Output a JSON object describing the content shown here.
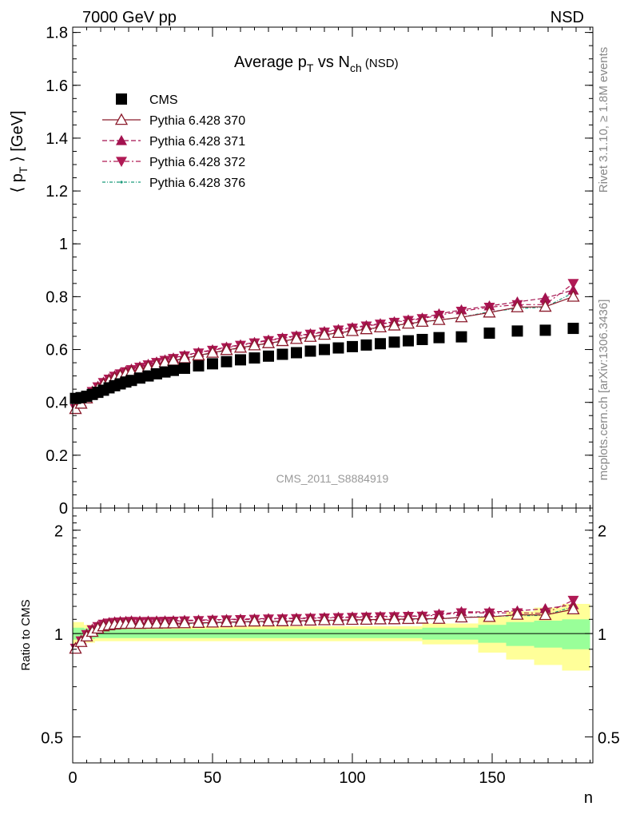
{
  "header": {
    "left": "7000 GeV pp",
    "right": "NSD"
  },
  "side_labels": {
    "rivet": "Rivet 3.1.10, ≥ 1.8M events",
    "mcplots": "mcplots.cern.ch [arXiv:1306.3436]"
  },
  "watermark": "CMS_2011_S8884919",
  "colors": {
    "cms": "#000000",
    "p370": "#8b1a2b",
    "p371": "#a3124f",
    "p372": "#b01a55",
    "p376": "#1a9a7a",
    "band_inner": "#99ff99",
    "band_outer": "#ffff99"
  },
  "chart_data": [
    {
      "type": "scatter",
      "title": "Average p_T vs N_ch (NSD)",
      "title_parts": {
        "main": "Average p",
        "sub1": "T",
        "mid": " vs N",
        "sub2": "ch",
        "tail": " (NSD)"
      },
      "ylabel": "⟨ p_T ⟩ [GeV]",
      "ylabel_parts": {
        "open": "⟨ p",
        "sub": "T",
        "close": " ⟩ [GeV]"
      },
      "xlabel": "n",
      "xlim": [
        0,
        186
      ],
      "ylim": [
        0,
        1.82
      ],
      "yticks": [
        "0",
        "0.2",
        "0.4",
        "0.6",
        "0.8",
        "1",
        "1.2",
        "1.4",
        "1.6",
        "1.8"
      ],
      "ytick_values": [
        0,
        0.2,
        0.4,
        0.6,
        0.8,
        1.0,
        1.2,
        1.4,
        1.6,
        1.8
      ],
      "xticks": [
        "0",
        "50",
        "100",
        "150"
      ],
      "xtick_values": [
        0,
        50,
        100,
        150
      ],
      "legend_position": "top-left",
      "series": [
        {
          "name": "CMS",
          "marker": "square",
          "x": [
            1,
            3,
            5,
            7,
            9,
            11,
            13,
            15,
            17,
            19,
            21,
            24,
            27,
            30,
            33,
            36,
            40,
            45,
            50,
            55,
            60,
            65,
            70,
            75,
            80,
            85,
            90,
            95,
            100,
            105,
            110,
            115,
            120,
            125,
            131,
            139,
            149,
            159,
            169,
            179
          ],
          "y": [
            0.415,
            0.418,
            0.423,
            0.43,
            0.438,
            0.446,
            0.455,
            0.463,
            0.47,
            0.477,
            0.483,
            0.492,
            0.5,
            0.508,
            0.515,
            0.521,
            0.529,
            0.538,
            0.546,
            0.554,
            0.561,
            0.568,
            0.575,
            0.582,
            0.588,
            0.594,
            0.6,
            0.606,
            0.611,
            0.617,
            0.622,
            0.628,
            0.633,
            0.638,
            0.645,
            0.648,
            0.662,
            0.67,
            0.673,
            0.68
          ]
        },
        {
          "name": "Pythia 6.428 370",
          "marker": "triangle-up-open",
          "x": [
            1,
            3,
            5,
            7,
            9,
            11,
            13,
            15,
            17,
            19,
            21,
            24,
            27,
            30,
            33,
            36,
            40,
            45,
            50,
            55,
            60,
            65,
            70,
            75,
            80,
            85,
            90,
            95,
            100,
            105,
            110,
            115,
            120,
            125,
            131,
            139,
            149,
            159,
            169,
            179
          ],
          "y": [
            0.375,
            0.395,
            0.415,
            0.435,
            0.453,
            0.468,
            0.481,
            0.492,
            0.501,
            0.509,
            0.516,
            0.525,
            0.534,
            0.543,
            0.551,
            0.558,
            0.567,
            0.578,
            0.588,
            0.598,
            0.607,
            0.616,
            0.624,
            0.632,
            0.64,
            0.648,
            0.656,
            0.663,
            0.67,
            0.677,
            0.684,
            0.691,
            0.698,
            0.705,
            0.712,
            0.722,
            0.74,
            0.76,
            0.762,
            0.8
          ]
        },
        {
          "name": "Pythia 6.428 371",
          "marker": "triangle-up",
          "x": [
            1,
            3,
            5,
            7,
            9,
            11,
            13,
            15,
            17,
            19,
            21,
            24,
            27,
            30,
            33,
            36,
            40,
            45,
            50,
            55,
            60,
            65,
            70,
            75,
            80,
            85,
            90,
            95,
            100,
            105,
            110,
            115,
            120,
            125,
            131,
            139,
            149,
            159,
            169,
            179
          ],
          "y": [
            0.378,
            0.4,
            0.422,
            0.443,
            0.461,
            0.477,
            0.49,
            0.501,
            0.51,
            0.518,
            0.526,
            0.535,
            0.544,
            0.553,
            0.561,
            0.568,
            0.578,
            0.589,
            0.599,
            0.609,
            0.618,
            0.627,
            0.636,
            0.644,
            0.652,
            0.66,
            0.668,
            0.676,
            0.683,
            0.691,
            0.698,
            0.705,
            0.712,
            0.719,
            0.735,
            0.75,
            0.765,
            0.78,
            0.795,
            0.825
          ]
        },
        {
          "name": "Pythia 6.428 372",
          "marker": "triangle-down",
          "x": [
            1,
            3,
            5,
            7,
            9,
            11,
            13,
            15,
            17,
            19,
            21,
            24,
            27,
            30,
            33,
            36,
            40,
            45,
            50,
            55,
            60,
            65,
            70,
            75,
            80,
            85,
            90,
            95,
            100,
            105,
            110,
            115,
            120,
            125,
            131,
            139,
            149,
            159,
            169,
            179
          ],
          "y": [
            0.376,
            0.398,
            0.42,
            0.441,
            0.459,
            0.475,
            0.488,
            0.499,
            0.508,
            0.516,
            0.524,
            0.533,
            0.542,
            0.551,
            0.559,
            0.566,
            0.576,
            0.587,
            0.597,
            0.607,
            0.616,
            0.625,
            0.634,
            0.642,
            0.65,
            0.658,
            0.666,
            0.674,
            0.681,
            0.689,
            0.696,
            0.703,
            0.71,
            0.717,
            0.73,
            0.745,
            0.76,
            0.77,
            0.77,
            0.85
          ]
        },
        {
          "name": "Pythia 6.428 376",
          "marker": "dot",
          "x": [
            1,
            3,
            5,
            7,
            9,
            11,
            13,
            15,
            17,
            19,
            21,
            24,
            27,
            30,
            33,
            36,
            40,
            45,
            50,
            55,
            60,
            65,
            70,
            75,
            80,
            85,
            90,
            95,
            100,
            105,
            110,
            115,
            120,
            125,
            131,
            139,
            149,
            159,
            169,
            179
          ],
          "y": [
            0.374,
            0.394,
            0.414,
            0.434,
            0.452,
            0.467,
            0.48,
            0.491,
            0.5,
            0.508,
            0.515,
            0.524,
            0.533,
            0.542,
            0.55,
            0.557,
            0.566,
            0.577,
            0.587,
            0.597,
            0.606,
            0.615,
            0.623,
            0.631,
            0.639,
            0.647,
            0.655,
            0.662,
            0.669,
            0.676,
            0.683,
            0.69,
            0.697,
            0.704,
            0.711,
            0.722,
            0.743,
            0.755,
            0.76,
            0.815
          ]
        }
      ]
    },
    {
      "type": "scatter",
      "ylabel": "Ratio to CMS",
      "xlabel": "n",
      "xlim": [
        0,
        186
      ],
      "ylim": [
        0.42,
        2.32
      ],
      "ylog": true,
      "yticks": [
        "0.5",
        "1",
        "2"
      ],
      "ytick_values": [
        0.5,
        1,
        2
      ],
      "xticks": [
        "0",
        "50",
        "100",
        "150"
      ],
      "xtick_values": [
        0,
        50,
        100,
        150
      ],
      "bands": {
        "x_edges": [
          0,
          4,
          8,
          12,
          16,
          20,
          25,
          30,
          35,
          40,
          50,
          60,
          70,
          80,
          90,
          100,
          110,
          120,
          125,
          135,
          145,
          155,
          165,
          175,
          185
        ],
        "inner": [
          0.04,
          0.035,
          0.03,
          0.03,
          0.03,
          0.03,
          0.03,
          0.03,
          0.03,
          0.03,
          0.03,
          0.03,
          0.03,
          0.03,
          0.03,
          0.03,
          0.03,
          0.03,
          0.04,
          0.04,
          0.06,
          0.08,
          0.09,
          0.1
        ],
        "outer": [
          0.08,
          0.06,
          0.05,
          0.05,
          0.05,
          0.05,
          0.05,
          0.05,
          0.05,
          0.05,
          0.05,
          0.05,
          0.05,
          0.05,
          0.05,
          0.05,
          0.05,
          0.05,
          0.07,
          0.07,
          0.12,
          0.16,
          0.19,
          0.22
        ]
      }
    }
  ]
}
